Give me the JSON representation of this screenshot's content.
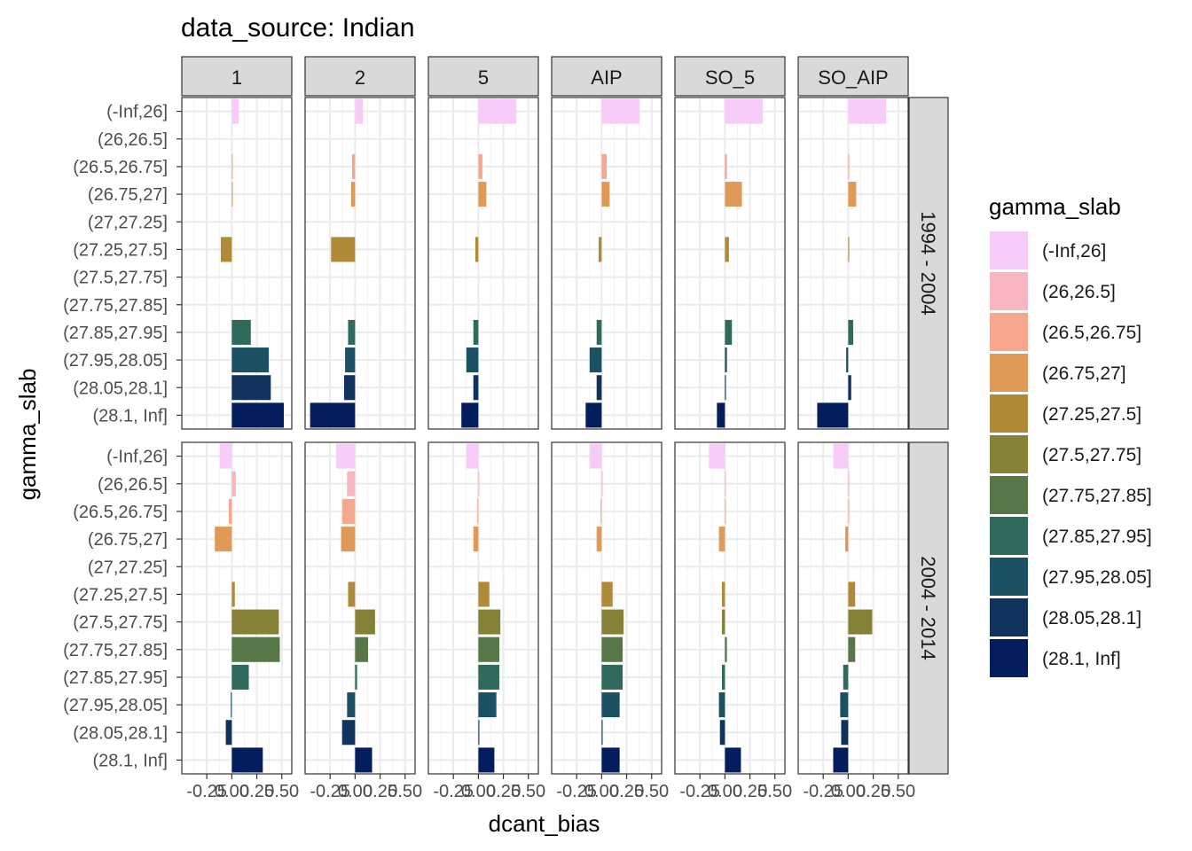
{
  "chart_data": {
    "type": "bar",
    "orientation": "horizontal",
    "title": "data_source: Indian",
    "xlabel": "dcant_bias",
    "ylabel": "gamma_slab",
    "xlim": [
      -0.5,
      0.6
    ],
    "x_ticks": [
      "-0.25",
      "0.00",
      "0.25",
      "0.50"
    ],
    "x_tick_values": [
      -0.25,
      0,
      0.25,
      0.5
    ],
    "grid": true,
    "legend_position": "right",
    "legend_title": "gamma_slab",
    "facet_columns": [
      "1",
      "2",
      "5",
      "AIP",
      "SO_5",
      "SO_AIP"
    ],
    "facet_rows": [
      "1994 - 2004",
      "2004 - 2014"
    ],
    "categories": [
      "(-Inf,26]",
      "(26,26.5]",
      "(26.5,26.75]",
      "(26.75,27]",
      "(27,27.25]",
      "(27.25,27.5]",
      "(27.5,27.75]",
      "(27.75,27.85]",
      "(27.85,27.95]",
      "(27.95,28.05]",
      "(28.05,28.1]",
      "(28.1, Inf]"
    ],
    "legend_categories": [
      "(-Inf,26]",
      "(26,26.5]",
      "(26.5,26.75]",
      "(26.75,27]",
      "(27.25,27.5]",
      "(27.5,27.75]",
      "(27.75,27.85]",
      "(27.85,27.95]",
      "(27.95,28.05]",
      "(28.05,28.1]",
      "(28.1, Inf]"
    ],
    "colors": {
      "(-Inf,26]": "#f8ccf9",
      "(26,26.5]": "#f9b5c0",
      "(26.5,26.75]": "#f7a78e",
      "(26.75,27]": "#e09a58",
      "(27,27.25]": "#c79a46",
      "(27.25,27.5]": "#b08a36",
      "(27.5,27.75]": "#858238",
      "(27.75,27.85]": "#577749",
      "(27.85,27.95]": "#2f6a5c",
      "(27.95,28.05]": "#1c5163",
      "(28.05,28.1]": "#12325e",
      "(28.1, Inf]": "#041d5c"
    },
    "panels": [
      {
        "col": "1",
        "row": "1994 - 2004",
        "values": [
          0.07,
          null,
          0.01,
          0.01,
          null,
          -0.11,
          null,
          null,
          0.19,
          0.37,
          0.39,
          0.52
        ]
      },
      {
        "col": "2",
        "row": "1994 - 2004",
        "values": [
          0.08,
          null,
          -0.03,
          -0.04,
          null,
          -0.24,
          null,
          null,
          -0.07,
          -0.1,
          -0.11,
          -0.45
        ]
      },
      {
        "col": "5",
        "row": "1994 - 2004",
        "values": [
          0.38,
          null,
          0.04,
          0.08,
          null,
          -0.03,
          null,
          null,
          -0.05,
          -0.12,
          -0.05,
          -0.17
        ]
      },
      {
        "col": "AIP",
        "row": "1994 - 2004",
        "values": [
          0.38,
          null,
          0.05,
          0.08,
          null,
          -0.03,
          null,
          null,
          -0.05,
          -0.12,
          -0.05,
          -0.16
        ]
      },
      {
        "col": "SO_5",
        "row": "1994 - 2004",
        "values": [
          0.38,
          null,
          0.02,
          0.17,
          null,
          0.04,
          null,
          null,
          0.07,
          0.02,
          0.01,
          -0.08
        ]
      },
      {
        "col": "SO_AIP",
        "row": "1994 - 2004",
        "values": [
          0.38,
          null,
          0.01,
          0.08,
          null,
          0.01,
          null,
          null,
          0.05,
          -0.02,
          0.03,
          -0.31
        ]
      },
      {
        "col": "1",
        "row": "2004 - 2014",
        "values": [
          -0.12,
          0.04,
          -0.03,
          -0.17,
          null,
          0.03,
          0.47,
          0.48,
          0.17,
          -0.01,
          -0.06,
          0.31
        ]
      },
      {
        "col": "2",
        "row": "2004 - 2014",
        "values": [
          -0.19,
          -0.08,
          -0.13,
          -0.14,
          null,
          -0.07,
          0.2,
          0.13,
          0.02,
          -0.08,
          -0.13,
          0.17
        ]
      },
      {
        "col": "5",
        "row": "2004 - 2014",
        "values": [
          -0.12,
          0.01,
          -0.01,
          -0.05,
          null,
          0.11,
          0.22,
          0.21,
          0.21,
          0.18,
          0.01,
          0.16
        ]
      },
      {
        "col": "AIP",
        "row": "2004 - 2014",
        "values": [
          -0.12,
          0.01,
          -0.01,
          -0.05,
          null,
          0.11,
          0.22,
          0.21,
          0.21,
          0.18,
          0.01,
          0.18
        ]
      },
      {
        "col": "SO_5",
        "row": "2004 - 2014",
        "values": [
          -0.16,
          0.01,
          0.01,
          -0.06,
          null,
          -0.03,
          -0.03,
          0.02,
          -0.03,
          -0.06,
          -0.05,
          0.16
        ]
      },
      {
        "col": "SO_AIP",
        "row": "2004 - 2014",
        "values": [
          -0.15,
          0.01,
          0.01,
          -0.03,
          null,
          0.07,
          0.24,
          0.07,
          -0.05,
          -0.08,
          -0.07,
          -0.15
        ]
      }
    ]
  }
}
